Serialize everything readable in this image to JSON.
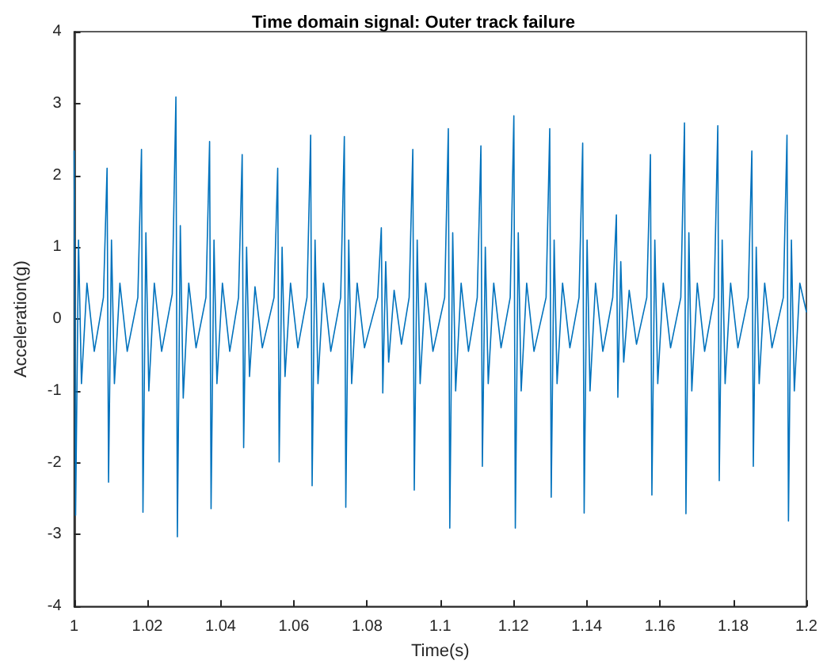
{
  "chart_data": {
    "type": "line",
    "title": "Time domain signal: Outer track failure",
    "xlabel": "Time(s)",
    "ylabel": "Acceleration(g)",
    "xlim": [
      1,
      1.2
    ],
    "xticks": [
      1,
      1.02,
      1.04,
      1.06,
      1.08,
      1.1,
      1.12,
      1.14,
      1.16,
      1.18,
      1.2
    ],
    "ylim": [
      -4,
      4
    ],
    "yticks": [
      -4,
      -3,
      -2,
      -1,
      0,
      1,
      2,
      3,
      4
    ],
    "marker": "none",
    "line_style": "solid",
    "series": [
      {
        "color": "#0072bd",
        "x": [
          1.0,
          1.0004,
          1.0012,
          1.002,
          1.0035,
          1.0055,
          1.008,
          1.009,
          1.0094,
          1.0102,
          1.011,
          1.0125,
          1.0145,
          1.0174,
          1.0184,
          1.0188,
          1.0196,
          1.0204,
          1.0219,
          1.0239,
          1.0268,
          1.0278,
          1.0282,
          1.029,
          1.0298,
          1.0313,
          1.0333,
          1.036,
          1.037,
          1.0374,
          1.0382,
          1.039,
          1.0405,
          1.0425,
          1.0449,
          1.0459,
          1.0463,
          1.0471,
          1.0479,
          1.0494,
          1.0514,
          1.0546,
          1.0556,
          1.056,
          1.0568,
          1.0576,
          1.0591,
          1.0611,
          1.0636,
          1.0646,
          1.065,
          1.0658,
          1.0666,
          1.0681,
          1.0701,
          1.0728,
          1.0738,
          1.0742,
          1.075,
          1.0758,
          1.0773,
          1.0793,
          1.0829,
          1.0839,
          1.0843,
          1.0851,
          1.0859,
          1.0874,
          1.0894,
          1.0915,
          1.0925,
          1.0929,
          1.0937,
          1.0945,
          1.096,
          1.098,
          1.1012,
          1.1022,
          1.1026,
          1.1034,
          1.1042,
          1.1057,
          1.1077,
          1.1101,
          1.1111,
          1.1115,
          1.1123,
          1.1131,
          1.1146,
          1.1166,
          1.1191,
          1.1201,
          1.1205,
          1.1213,
          1.1221,
          1.1236,
          1.1256,
          1.1289,
          1.1299,
          1.1303,
          1.1311,
          1.1319,
          1.1334,
          1.1354,
          1.1379,
          1.1389,
          1.1393,
          1.1401,
          1.1409,
          1.1424,
          1.1444,
          1.1471,
          1.1481,
          1.1485,
          1.1493,
          1.1501,
          1.1516,
          1.1536,
          1.1564,
          1.1574,
          1.1578,
          1.1586,
          1.1594,
          1.1609,
          1.1629,
          1.1657,
          1.1667,
          1.1671,
          1.1679,
          1.1687,
          1.1702,
          1.1722,
          1.1748,
          1.1758,
          1.1762,
          1.177,
          1.1778,
          1.1793,
          1.1813,
          1.1841,
          1.1851,
          1.1855,
          1.1863,
          1.1871,
          1.1886,
          1.1906,
          1.1937,
          1.1947,
          1.1951,
          1.1959,
          1.1967,
          1.1982,
          1.2
        ],
        "values": [
          2.34,
          -2.73,
          1.1,
          -0.9,
          0.5,
          -0.45,
          0.3,
          2.1,
          -2.27,
          1.1,
          -0.9,
          0.5,
          -0.45,
          0.3,
          2.36,
          -2.69,
          1.2,
          -1.0,
          0.5,
          -0.45,
          0.35,
          3.09,
          -3.03,
          1.3,
          -1.1,
          0.5,
          -0.4,
          0.3,
          2.47,
          -2.64,
          1.1,
          -0.9,
          0.5,
          -0.45,
          0.3,
          2.29,
          -1.79,
          1.0,
          -0.8,
          0.45,
          -0.4,
          0.3,
          2.1,
          -1.99,
          1.0,
          -0.8,
          0.5,
          -0.4,
          0.3,
          2.56,
          -2.32,
          1.1,
          -0.9,
          0.5,
          -0.45,
          0.3,
          2.54,
          -2.62,
          1.1,
          -0.9,
          0.5,
          -0.4,
          0.3,
          1.27,
          -1.03,
          0.8,
          -0.6,
          0.4,
          -0.35,
          0.3,
          2.36,
          -2.38,
          1.1,
          -0.9,
          0.5,
          -0.45,
          0.3,
          2.65,
          -2.91,
          1.2,
          -1.0,
          0.5,
          -0.45,
          0.3,
          2.41,
          -2.05,
          1.0,
          -0.9,
          0.5,
          -0.4,
          0.3,
          2.83,
          -2.91,
          1.2,
          -1.0,
          0.5,
          -0.45,
          0.3,
          2.65,
          -2.48,
          1.1,
          -0.9,
          0.5,
          -0.4,
          0.3,
          2.45,
          -2.7,
          1.1,
          -1.0,
          0.5,
          -0.45,
          0.3,
          1.45,
          -1.09,
          0.8,
          -0.6,
          0.4,
          -0.35,
          0.3,
          2.29,
          -2.45,
          1.1,
          -0.9,
          0.5,
          -0.4,
          0.3,
          2.73,
          -2.71,
          1.2,
          -1.0,
          0.5,
          -0.45,
          0.3,
          2.69,
          -2.25,
          1.1,
          -0.9,
          0.5,
          -0.4,
          0.3,
          2.34,
          -2.05,
          1.0,
          -0.9,
          0.5,
          -0.4,
          0.3,
          2.56,
          -2.81,
          1.1,
          -1.0,
          0.5,
          0.1
        ]
      }
    ]
  }
}
